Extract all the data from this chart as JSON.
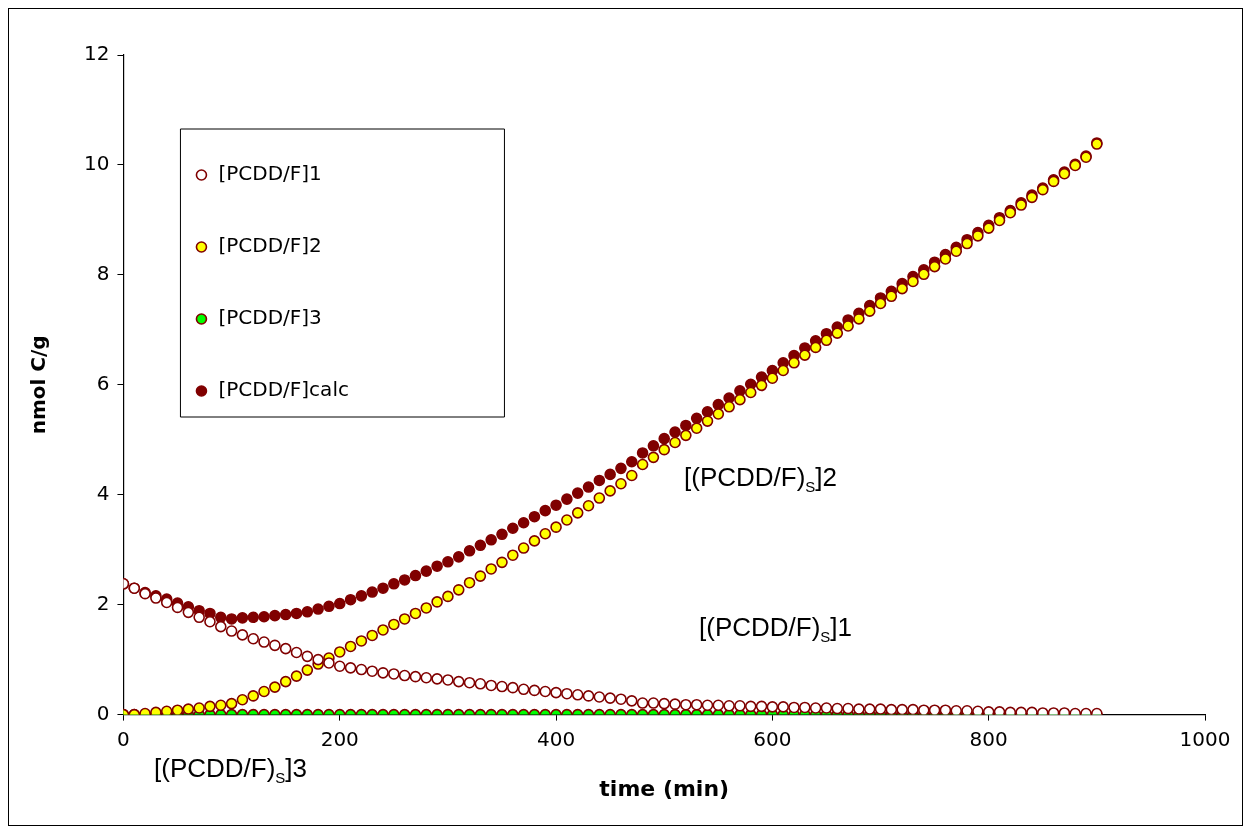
{
  "chart_data": {
    "type": "scatter",
    "xlabel": "time (min)",
    "ylabel": "nmol C/g",
    "x": [
      0,
      10,
      20,
      30,
      40,
      50,
      60,
      70,
      80,
      90,
      100,
      110,
      120,
      130,
      140,
      150,
      160,
      170,
      180,
      190,
      200,
      210,
      220,
      230,
      240,
      250,
      260,
      270,
      280,
      290,
      300,
      310,
      320,
      330,
      340,
      350,
      360,
      370,
      380,
      390,
      400,
      410,
      420,
      430,
      440,
      450,
      460,
      470,
      480,
      490,
      500,
      510,
      520,
      530,
      540,
      550,
      560,
      570,
      580,
      590,
      600,
      610,
      620,
      630,
      640,
      650,
      660,
      670,
      680,
      690,
      700,
      710,
      720,
      730,
      740,
      750,
      760,
      770,
      780,
      790,
      800,
      810,
      820,
      830,
      840,
      850,
      860,
      870,
      880,
      890,
      900
    ],
    "series": [
      {
        "name": "[PCDD/F]1",
        "color": "#ffffff",
        "values": [
          2.38,
          2.3,
          2.2,
          2.12,
          2.04,
          1.95,
          1.86,
          1.77,
          1.69,
          1.6,
          1.52,
          1.45,
          1.38,
          1.32,
          1.26,
          1.2,
          1.13,
          1.06,
          1.0,
          0.94,
          0.88,
          0.85,
          0.82,
          0.79,
          0.76,
          0.74,
          0.71,
          0.69,
          0.67,
          0.65,
          0.63,
          0.6,
          0.58,
          0.56,
          0.53,
          0.51,
          0.49,
          0.46,
          0.44,
          0.42,
          0.4,
          0.38,
          0.36,
          0.34,
          0.32,
          0.3,
          0.28,
          0.25,
          0.21,
          0.21,
          0.2,
          0.19,
          0.18,
          0.18,
          0.17,
          0.17,
          0.16,
          0.16,
          0.15,
          0.15,
          0.14,
          0.14,
          0.13,
          0.13,
          0.12,
          0.12,
          0.11,
          0.11,
          0.1,
          0.1,
          0.1,
          0.09,
          0.09,
          0.09,
          0.08,
          0.08,
          0.08,
          0.07,
          0.07,
          0.06,
          0.05,
          0.05,
          0.04,
          0.04,
          0.04,
          0.03,
          0.03,
          0.03,
          0.02,
          0.02,
          0.02
        ]
      },
      {
        "name": "[PCDD/F]2",
        "color": "#ffff00",
        "values": [
          0,
          0,
          0.02,
          0.04,
          0.06,
          0.08,
          0.1,
          0.12,
          0.15,
          0.17,
          0.2,
          0.27,
          0.34,
          0.42,
          0.5,
          0.6,
          0.7,
          0.81,
          0.92,
          1.03,
          1.14,
          1.24,
          1.34,
          1.44,
          1.54,
          1.64,
          1.74,
          1.84,
          1.94,
          2.05,
          2.15,
          2.27,
          2.4,
          2.52,
          2.65,
          2.77,
          2.9,
          3.03,
          3.16,
          3.29,
          3.41,
          3.54,
          3.67,
          3.8,
          3.94,
          4.07,
          4.2,
          4.35,
          4.55,
          4.68,
          4.82,
          4.95,
          5.08,
          5.21,
          5.34,
          5.47,
          5.6,
          5.73,
          5.86,
          5.99,
          6.12,
          6.26,
          6.4,
          6.54,
          6.68,
          6.81,
          6.94,
          7.07,
          7.2,
          7.34,
          7.48,
          7.61,
          7.75,
          7.88,
          8.01,
          8.15,
          8.29,
          8.43,
          8.57,
          8.71,
          8.85,
          8.99,
          9.13,
          9.27,
          9.41,
          9.55,
          9.7,
          9.84,
          9.99,
          10.14,
          10.38
        ]
      },
      {
        "name": "[PCDD/F]3",
        "color": "#00ff00",
        "values": [
          0,
          0,
          0,
          0,
          0,
          0,
          0,
          0,
          0,
          0,
          0,
          0,
          0,
          0,
          0,
          0,
          0,
          0,
          0,
          0,
          0,
          0,
          0,
          0,
          0,
          0,
          0,
          0,
          0,
          0,
          0,
          0,
          0,
          0,
          0,
          0,
          0,
          0,
          0,
          0,
          0,
          0,
          0,
          0,
          0,
          0,
          0,
          0,
          0,
          0,
          0,
          0,
          0,
          0,
          0,
          0,
          0,
          0,
          0,
          0,
          0,
          0,
          0,
          0,
          0,
          0,
          0,
          0,
          0,
          0,
          0,
          0,
          0,
          0,
          0,
          0,
          0,
          0,
          0,
          0,
          0,
          0,
          0,
          0,
          0,
          0,
          0,
          0,
          0,
          0,
          0
        ]
      },
      {
        "name": "[PCDD/F]calc",
        "color": "#800000",
        "values": [
          2.38,
          2.3,
          2.22,
          2.16,
          2.1,
          2.03,
          1.96,
          1.89,
          1.84,
          1.77,
          1.74,
          1.76,
          1.77,
          1.78,
          1.8,
          1.82,
          1.84,
          1.87,
          1.92,
          1.97,
          2.02,
          2.09,
          2.16,
          2.23,
          2.3,
          2.38,
          2.45,
          2.53,
          2.61,
          2.7,
          2.78,
          2.87,
          2.98,
          3.08,
          3.18,
          3.28,
          3.39,
          3.49,
          3.6,
          3.71,
          3.81,
          3.92,
          4.03,
          4.14,
          4.26,
          4.37,
          4.48,
          4.6,
          4.76,
          4.89,
          5.02,
          5.14,
          5.26,
          5.39,
          5.51,
          5.64,
          5.76,
          5.89,
          6.01,
          6.14,
          6.26,
          6.4,
          6.53,
          6.67,
          6.8,
          6.93,
          7.05,
          7.18,
          7.3,
          7.44,
          7.58,
          7.7,
          7.84,
          7.97,
          8.09,
          8.23,
          8.37,
          8.5,
          8.64,
          8.77,
          8.9,
          9.04,
          9.17,
          9.31,
          9.45,
          9.58,
          9.73,
          9.87,
          10.01,
          10.16,
          10.4
        ]
      }
    ],
    "xlim": [
      0,
      1000
    ],
    "xticks": [
      0,
      200,
      400,
      600,
      800,
      1000
    ],
    "ylim": [
      0,
      12
    ],
    "yticks": [
      0,
      2,
      4,
      6,
      8,
      10,
      12
    ],
    "grid": false,
    "legend": "top left",
    "marker": "circle",
    "annotations": [
      "[(PCDD/F)$_{S}$]2",
      "[(PCDD/F)$_{S}$]1",
      "[(PCDD/F)$_{S}$]3"
    ]
  }
}
